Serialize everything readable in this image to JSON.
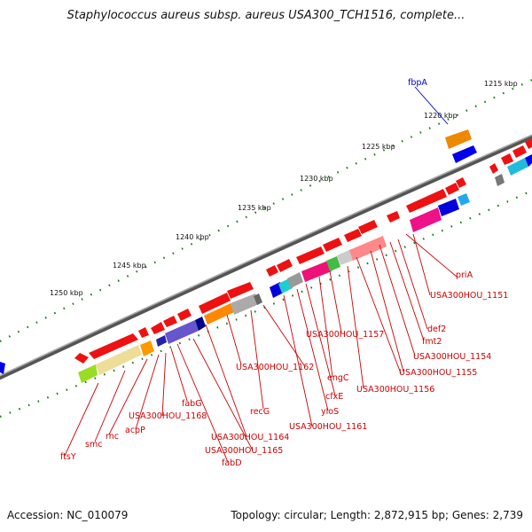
{
  "header": {
    "title": "Staphylococcus aureus subsp. aureus USA300_TCH1516, complete..."
  },
  "footer": {
    "accession": "Accession: NC_010079",
    "topology": "Topology: circular; Length: 2,872,915 bp; Genes: 2,739"
  },
  "map": {
    "ticks": [
      "1215 kbp",
      "1220 kbp",
      "1225 kbp",
      "1230 kbp",
      "1235 kbp",
      "1240 kbp",
      "1245 kbp",
      "1250 kbp"
    ],
    "gene_labels": [
      "fbpA",
      "priA",
      "USA300HOU_1151",
      "def2",
      "fmt2",
      "USA300HOU_1154",
      "USA300HOU_1155",
      "USA300HOU_1156",
      "USA300HOU_1157",
      "engC",
      "cfxE",
      "yloS",
      "USA300HOU_1161",
      "USA300HOU_1162",
      "recG",
      "USA300HOU_1164",
      "USA300HOU_1165",
      "fabD",
      "fabG",
      "USA300HOU_1168",
      "acpP",
      "rnc",
      "smc",
      "ftsY"
    ],
    "colors": {
      "forward_gene": "#ee1111",
      "reverse_gene": "#0000ee",
      "label_red": "#cc0000",
      "label_blue": "#0000cc",
      "backbone": "#777777",
      "tick": "#117711"
    }
  }
}
